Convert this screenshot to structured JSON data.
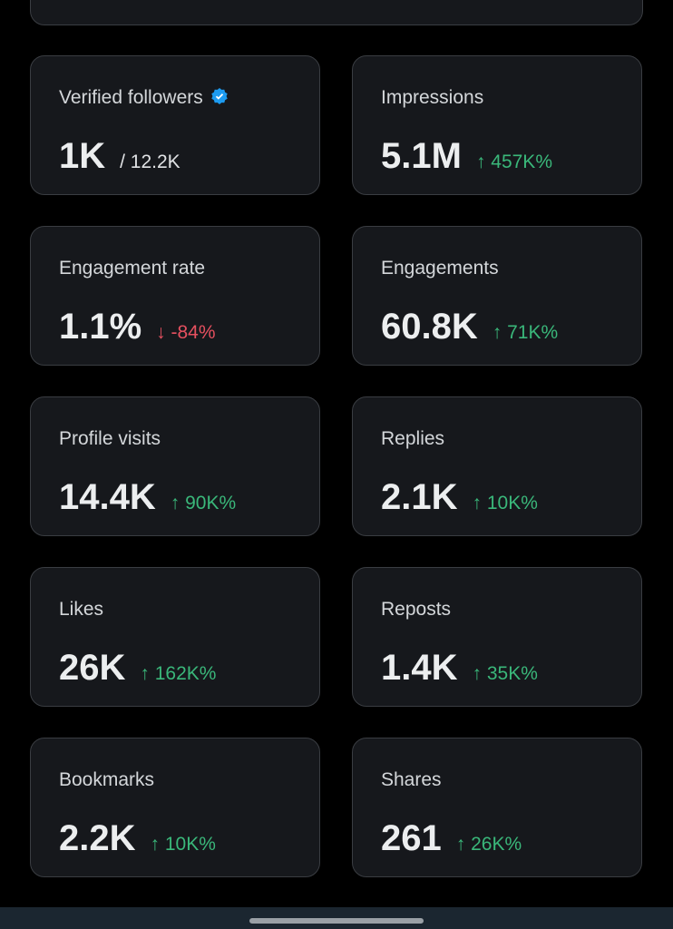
{
  "cards": [
    {
      "label": "Verified followers",
      "value": "1K",
      "total": "/ 12.2K"
    },
    {
      "label": "Impressions",
      "value": "5.1M",
      "change": "↑ 457K%",
      "color": "#3ab77a"
    },
    {
      "label": "Engagement rate",
      "value": "1.1%",
      "change": "↓ -84%",
      "color": "#e5505f"
    },
    {
      "label": "Engagements",
      "value": "60.8K",
      "change": "↑ 71K%",
      "color": "#3ab77a"
    },
    {
      "label": "Profile visits",
      "value": "14.4K",
      "change": "↑ 90K%",
      "color": "#3ab77a"
    },
    {
      "label": "Replies",
      "value": "2.1K",
      "change": "↑ 10K%",
      "color": "#3ab77a"
    },
    {
      "label": "Likes",
      "value": "26K",
      "change": "↑ 162K%",
      "color": "#3ab77a"
    },
    {
      "label": "Reposts",
      "value": "1.4K",
      "change": "↑ 35K%",
      "color": "#3ab77a"
    },
    {
      "label": "Bookmarks",
      "value": "2.2K",
      "change": "↑ 10K%",
      "color": "#3ab77a"
    },
    {
      "label": "Shares",
      "value": "261",
      "change": "↑ 26K%",
      "color": "#3ab77a"
    }
  ]
}
